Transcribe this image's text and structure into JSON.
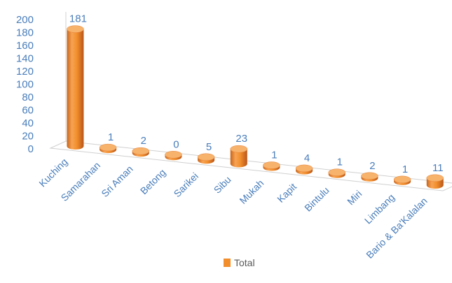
{
  "chart_data": {
    "type": "bar",
    "style": "3d-cylinder",
    "categories": [
      "Kuching",
      "Samarahan",
      "Sri Aman",
      "Betong",
      "Sarikei",
      "Sibu",
      "Mukah",
      "Kapit",
      "Bintulu",
      "Miri",
      "Limbang",
      "Bario & Ba'Kalalan"
    ],
    "series": [
      {
        "name": "Total",
        "values": [
          181,
          1,
          2,
          0,
          5,
          23,
          1,
          4,
          1,
          2,
          1,
          11
        ]
      }
    ],
    "ylim": [
      0,
      200
    ],
    "yticks": [
      "0",
      "20",
      "40",
      "60",
      "80",
      "100",
      "120",
      "140",
      "160",
      "180",
      "200"
    ],
    "grid": false,
    "legend": "bottom",
    "colors": {
      "bar": "#f28e2b",
      "bar_dark": "#c55a11",
      "bar_light": "#f7b26b",
      "text": "#4a7ebb",
      "axis": "#d0d0d0"
    }
  }
}
